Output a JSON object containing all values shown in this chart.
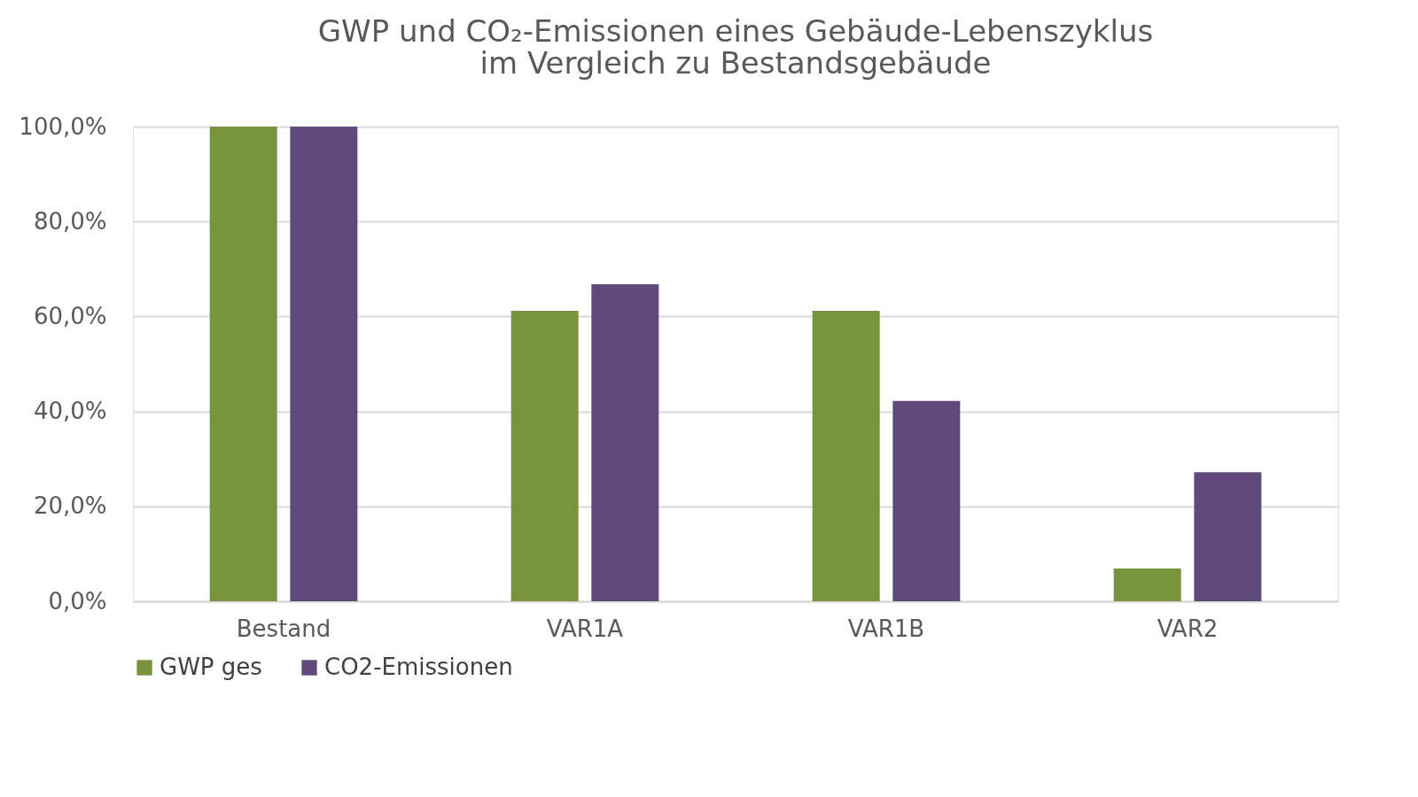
{
  "chart_data": {
    "type": "bar",
    "title": "GWP und CO₂-Emissionen eines Gebäude-Lebenszyklus\nim Vergleich zu Bestandsgebäude",
    "categories": [
      "Bestand",
      "VAR1A",
      "VAR1B",
      "VAR2"
    ],
    "series": [
      {
        "name": "GWP ges",
        "color": "#77933c",
        "values": [
          100,
          61.2,
          61.2,
          6.9
        ]
      },
      {
        "name": "CO2-Emissionen",
        "color": "#604a7b",
        "values": [
          100,
          66.8,
          42.2,
          27.2
        ]
      }
    ],
    "ylim": [
      0,
      100
    ],
    "yticks": [
      {
        "value": 0,
        "label": "0,0%"
      },
      {
        "value": 20,
        "label": "20,0%"
      },
      {
        "value": 40,
        "label": "40,0%"
      },
      {
        "value": 60,
        "label": "60,0%"
      },
      {
        "value": 80,
        "label": "80,0%"
      },
      {
        "value": 100,
        "label": "100,0%"
      }
    ],
    "grid": "y",
    "legend": "bottom"
  }
}
